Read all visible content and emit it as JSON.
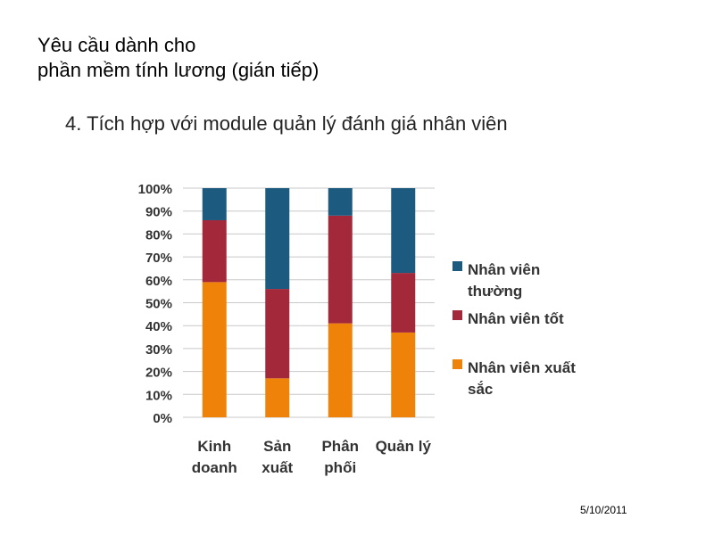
{
  "slide": {
    "title_line1": "Yêu cầu dành cho",
    "title_line2": "phần mềm tính lương (gián tiếp)",
    "subtitle": "4. Tích hợp với module quản lý đánh giá nhân viên",
    "date": "5/10/2011"
  },
  "chart_data": {
    "type": "bar",
    "stacked": true,
    "categories": [
      [
        "Kinh",
        "doanh"
      ],
      [
        "Sản",
        "xuất"
      ],
      [
        "Phân",
        "phối"
      ],
      [
        "Quản lý"
      ]
    ],
    "series": [
      {
        "name": "Nhân viên xuất sắc",
        "legend_lines": [
          "Nhân viên xuất",
          "sắc"
        ],
        "color": "#ef8208",
        "values": [
          59,
          17,
          41,
          37
        ]
      },
      {
        "name": "Nhân viên tốt",
        "legend_lines": [
          "Nhân viên tốt"
        ],
        "color": "#a3283a",
        "values": [
          27,
          39,
          47,
          26
        ]
      },
      {
        "name": "Nhân viên thường",
        "legend_lines": [
          "Nhân viên",
          "thường"
        ],
        "color": "#1d5a80",
        "values": [
          14,
          44,
          12,
          37
        ]
      }
    ],
    "y_ticks": [
      "0%",
      "10%",
      "20%",
      "30%",
      "40%",
      "50%",
      "60%",
      "70%",
      "80%",
      "90%",
      "100%"
    ],
    "ylim": [
      0,
      100
    ],
    "grid": true,
    "legend_position": "right"
  }
}
